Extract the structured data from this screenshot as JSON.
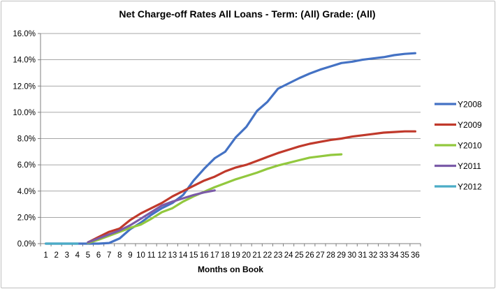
{
  "chart_data": {
    "type": "line",
    "title": "Net Charge-off Rates   All Loans - Term: (All)  Grade: (All)",
    "xlabel": "Months on Book",
    "ylabel": "",
    "x": [
      1,
      2,
      3,
      4,
      5,
      6,
      7,
      8,
      9,
      10,
      11,
      12,
      13,
      14,
      15,
      16,
      17,
      18,
      19,
      20,
      21,
      22,
      23,
      24,
      25,
      26,
      27,
      28,
      29,
      30,
      31,
      32,
      33,
      34,
      35,
      36
    ],
    "y_ticks": [
      "0.0%",
      "2.0%",
      "4.0%",
      "6.0%",
      "8.0%",
      "10.0%",
      "12.0%",
      "14.0%",
      "16.0%"
    ],
    "ylim": [
      0,
      16
    ],
    "grid": "horizontal",
    "legend_position": "right",
    "series": [
      {
        "name": "Y2008",
        "color": "#4472C4",
        "values": [
          0,
          0,
          0,
          0,
          0,
          0,
          0.05,
          0.4,
          1.1,
          1.6,
          2.2,
          2.7,
          3.1,
          3.7,
          4.8,
          5.7,
          6.5,
          7.0,
          8.1,
          8.9,
          10.1,
          10.8,
          11.8,
          12.2,
          12.6,
          12.95,
          13.25,
          13.5,
          13.75,
          13.85,
          14.0,
          14.1,
          14.2,
          14.35,
          14.45,
          14.5
        ]
      },
      {
        "name": "Y2009",
        "color": "#C0392B",
        "values": [
          null,
          null,
          null,
          null,
          0.1,
          0.5,
          0.9,
          1.15,
          1.8,
          2.3,
          2.7,
          3.1,
          3.6,
          4.0,
          4.4,
          4.8,
          5.1,
          5.5,
          5.8,
          6.0,
          6.3,
          6.6,
          6.9,
          7.15,
          7.4,
          7.6,
          7.75,
          7.9,
          8.0,
          8.15,
          8.25,
          8.35,
          8.45,
          8.5,
          8.55,
          8.55
        ]
      },
      {
        "name": "Y2010",
        "color": "#92C83E",
        "values": [
          null,
          null,
          null,
          null,
          0.05,
          0.3,
          0.6,
          0.9,
          1.2,
          1.45,
          1.9,
          2.4,
          2.7,
          3.2,
          3.6,
          3.95,
          4.3,
          4.6,
          4.9,
          5.15,
          5.4,
          5.7,
          5.95,
          6.15,
          6.35,
          6.55,
          6.65,
          6.75,
          6.8,
          null,
          null,
          null,
          null,
          null,
          null,
          null
        ]
      },
      {
        "name": "Y2011",
        "color": "#7B5BA8",
        "values": [
          null,
          null,
          null,
          null,
          0.1,
          0.4,
          0.7,
          1.0,
          1.4,
          1.9,
          2.4,
          2.9,
          3.2,
          3.45,
          3.7,
          3.9,
          4.05,
          null,
          null,
          null,
          null,
          null,
          null,
          null,
          null,
          null,
          null,
          null,
          null,
          null,
          null,
          null,
          null,
          null,
          null,
          null
        ]
      },
      {
        "name": "Y2012",
        "color": "#4BACC6",
        "values": [
          0,
          0,
          0,
          0,
          null,
          null,
          null,
          null,
          null,
          null,
          null,
          null,
          null,
          null,
          null,
          null,
          null,
          null,
          null,
          null,
          null,
          null,
          null,
          null,
          null,
          null,
          null,
          null,
          null,
          null,
          null,
          null,
          null,
          null,
          null,
          null
        ]
      }
    ]
  }
}
